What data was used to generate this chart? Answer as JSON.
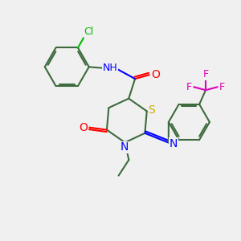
{
  "bg_color": "#f0f0f0",
  "atom_colors": {
    "C": "#3d6b3d",
    "N": "#0000ff",
    "O": "#ff0000",
    "S": "#ccaa00",
    "Cl": "#00bb00",
    "F": "#dd00bb"
  },
  "figsize": [
    3.0,
    3.0
  ],
  "dpi": 100
}
